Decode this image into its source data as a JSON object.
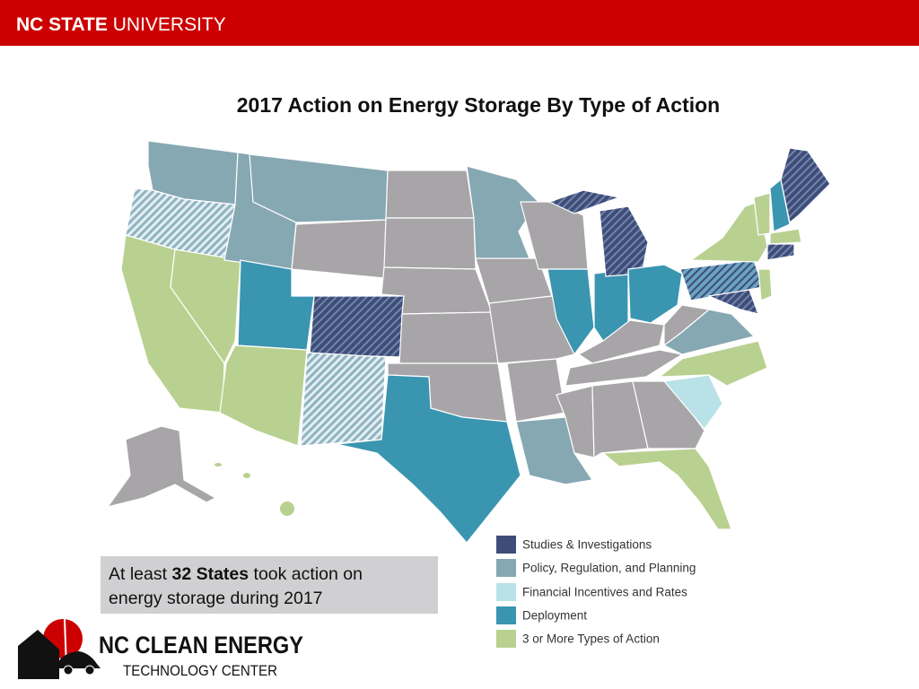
{
  "header": {
    "brand_bold": "NC STATE",
    "brand_rest": "UNIVERSITY"
  },
  "title": "2017 Action on Energy Storage By Type of Action",
  "legend": [
    {
      "name": "Studies & Investigations",
      "color": "#3f4c7a"
    },
    {
      "name": "Policy, Regulation, and Planning",
      "color": "#86a8b3"
    },
    {
      "name": "Financial Incentives and Rates",
      "color": "#b9e1e8"
    },
    {
      "name": "Deployment",
      "color": "#3a95b0"
    },
    {
      "name": "3 or More Types of Action",
      "color": "#b9d190"
    }
  ],
  "callout": {
    "prefix": "At least",
    "emphasis": "32 States",
    "suffix": "took action on",
    "line2": "energy storage during 2017"
  },
  "logo": {
    "line1": "NC CLEAN ENERGY",
    "line2": "TECHNOLOGY CENTER"
  }
}
